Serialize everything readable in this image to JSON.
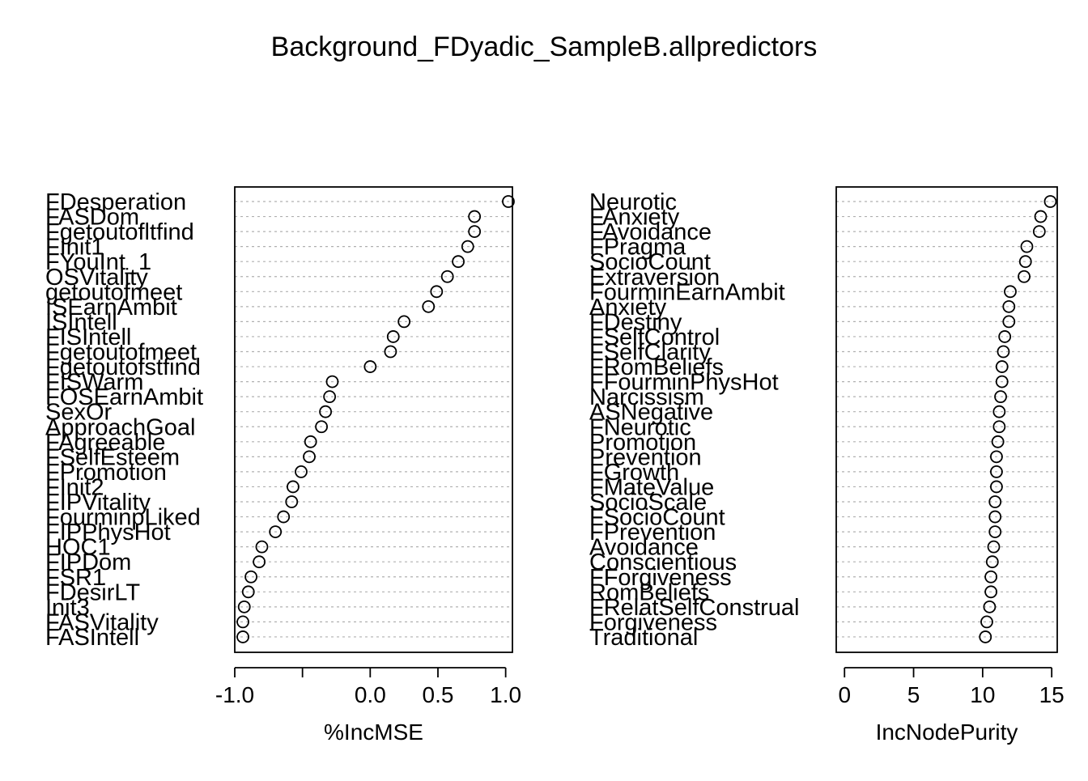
{
  "title": "Background_FDyadic_SampleB.allpredictors",
  "chart_data": [
    {
      "type": "scatter",
      "style": "dotchart",
      "xlabel": "%IncMSE",
      "xlim": [
        -1.0,
        1.05
      ],
      "xticks": [
        -1.0,
        -0.5,
        0.0,
        0.5,
        1.0
      ],
      "xtick_labels": [
        "-1.0",
        "",
        "0.0",
        "0.5",
        "1.0"
      ],
      "grid": "horizontal-dotted",
      "items": [
        {
          "label": "FDesperation",
          "value": 1.02
        },
        {
          "label": "FASDom",
          "value": 0.77
        },
        {
          "label": "Fgetoutofltfind",
          "value": 0.77
        },
        {
          "label": "FInit1",
          "value": 0.72
        },
        {
          "label": "FYouInt_1",
          "value": 0.65
        },
        {
          "label": "OSVitality",
          "value": 0.57
        },
        {
          "label": "getoutofmeet",
          "value": 0.49
        },
        {
          "label": "ISEarnAmbit",
          "value": 0.43
        },
        {
          "label": "ISIntell",
          "value": 0.25
        },
        {
          "label": "FISIntell",
          "value": 0.17
        },
        {
          "label": "Fgetoutofmeet",
          "value": 0.15
        },
        {
          "label": "Fgetoutofstfind",
          "value": 0.0
        },
        {
          "label": "FISWarm",
          "value": -0.28
        },
        {
          "label": "FOSEarnAmbit",
          "value": -0.3
        },
        {
          "label": "SexOr",
          "value": -0.33
        },
        {
          "label": "ApproachGoal",
          "value": -0.36
        },
        {
          "label": "FAgreeable",
          "value": -0.44
        },
        {
          "label": "FSelfEsteem",
          "value": -0.45
        },
        {
          "label": "FPromotion",
          "value": -0.51
        },
        {
          "label": "FInit2",
          "value": -0.57
        },
        {
          "label": "FIPVitality",
          "value": -0.58
        },
        {
          "label": "FourminpLiked",
          "value": -0.64
        },
        {
          "label": "FIPPhysHot",
          "value": -0.7
        },
        {
          "label": "HOC1",
          "value": -0.8
        },
        {
          "label": "FIPDom",
          "value": -0.82
        },
        {
          "label": "FSR1",
          "value": -0.88
        },
        {
          "label": "FDesirLT",
          "value": -0.9
        },
        {
          "label": "Init3",
          "value": -0.93
        },
        {
          "label": "FASVitality",
          "value": -0.94
        },
        {
          "label": "FASIntell",
          "value": -0.94
        }
      ]
    },
    {
      "type": "scatter",
      "style": "dotchart",
      "xlabel": "IncNodePurity",
      "xlim": [
        -0.6,
        15.4
      ],
      "xticks": [
        0,
        5,
        10,
        15
      ],
      "xtick_labels": [
        "0",
        "5",
        "10",
        "15"
      ],
      "grid": "horizontal-dotted",
      "items": [
        {
          "label": "Neurotic",
          "value": 14.9
        },
        {
          "label": "FAnxiety",
          "value": 14.2
        },
        {
          "label": "FAvoidance",
          "value": 14.1
        },
        {
          "label": "FPragma",
          "value": 13.2
        },
        {
          "label": "SocioCount",
          "value": 13.1
        },
        {
          "label": "Extraversion",
          "value": 13.0
        },
        {
          "label": "FourminEarnAmbit",
          "value": 12.0
        },
        {
          "label": "Anxiety",
          "value": 11.9
        },
        {
          "label": "FDestiny",
          "value": 11.9
        },
        {
          "label": "FSelfControl",
          "value": 11.6
        },
        {
          "label": "FSelfClarity",
          "value": 11.5
        },
        {
          "label": "FRomBeliefs",
          "value": 11.4
        },
        {
          "label": "FFourminPhysHot",
          "value": 11.4
        },
        {
          "label": "Narcissism",
          "value": 11.3
        },
        {
          "label": "ASNegative",
          "value": 11.2
        },
        {
          "label": "FNeurotic",
          "value": 11.2
        },
        {
          "label": "Promotion",
          "value": 11.1
        },
        {
          "label": "Prevention",
          "value": 11.0
        },
        {
          "label": "FGrowth",
          "value": 11.0
        },
        {
          "label": "FMateValue",
          "value": 11.0
        },
        {
          "label": "SocioScale",
          "value": 10.9
        },
        {
          "label": "FSocioCount",
          "value": 10.9
        },
        {
          "label": "FPrevention",
          "value": 10.9
        },
        {
          "label": "Avoidance",
          "value": 10.8
        },
        {
          "label": "Conscientious",
          "value": 10.7
        },
        {
          "label": "FForgiveness",
          "value": 10.6
        },
        {
          "label": "RomBeliefs",
          "value": 10.6
        },
        {
          "label": "FRelatSelfConstrual",
          "value": 10.5
        },
        {
          "label": "Forgiveness",
          "value": 10.3
        },
        {
          "label": "Traditional",
          "value": 10.2
        }
      ]
    }
  ]
}
